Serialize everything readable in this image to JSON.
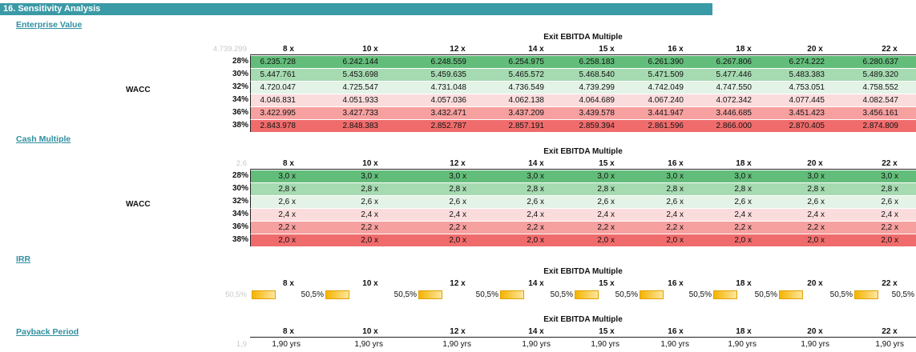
{
  "title": "16. Sensitivity Analysis",
  "colors": {
    "green_dark": "#63bd7a",
    "green_mid": "#a6dab1",
    "green_light": "#e3f3e6",
    "red_light": "#fbdcdc",
    "red_mid": "#f6a0a0",
    "red_dark": "#f06c6c"
  },
  "multiples": [
    "8 x",
    "10 x",
    "12 x",
    "14 x",
    "15 x",
    "16 x",
    "18 x",
    "20 x",
    "22 x"
  ],
  "caption": "Exit EBITDA Multiple",
  "wacc_label": "WACC",
  "wacc_rows": [
    "28%",
    "30%",
    "32%",
    "34%",
    "36%",
    "38%"
  ],
  "enterprise_value": {
    "label": "Enterprise Value",
    "corner": "4.739.299",
    "rows": [
      [
        "6.235.728",
        "6.242.144",
        "6.248.559",
        "6.254.975",
        "6.258.183",
        "6.261.390",
        "6.267.806",
        "6.274.222",
        "6.280.637"
      ],
      [
        "5.447.761",
        "5.453.698",
        "5.459.635",
        "5.465.572",
        "5.468.540",
        "5.471.509",
        "5.477.446",
        "5.483.383",
        "5.489.320"
      ],
      [
        "4.720.047",
        "4.725.547",
        "4.731.048",
        "4.736.549",
        "4.739.299",
        "4.742.049",
        "4.747.550",
        "4.753.051",
        "4.758.552"
      ],
      [
        "4.046.831",
        "4.051.933",
        "4.057.036",
        "4.062.138",
        "4.064.689",
        "4.067.240",
        "4.072.342",
        "4.077.445",
        "4.082.547"
      ],
      [
        "3.422.995",
        "3.427.733",
        "3.432.471",
        "3.437.209",
        "3.439.578",
        "3.441.947",
        "3.446.685",
        "3.451.423",
        "3.456.161"
      ],
      [
        "2.843.978",
        "2.848.383",
        "2.852.787",
        "2.857.191",
        "2.859.394",
        "2.861.596",
        "2.866.000",
        "2.870.405",
        "2.874.809"
      ]
    ]
  },
  "cash_multiple": {
    "label": "Cash Multiple",
    "corner": "2,6",
    "rows": [
      [
        "3,0 x",
        "3,0 x",
        "3,0 x",
        "3,0 x",
        "3,0 x",
        "3,0 x",
        "3,0 x",
        "3,0 x",
        "3,0 x"
      ],
      [
        "2,8 x",
        "2,8 x",
        "2,8 x",
        "2,8 x",
        "2,8 x",
        "2,8 x",
        "2,8 x",
        "2,8 x",
        "2,8 x"
      ],
      [
        "2,6 x",
        "2,6 x",
        "2,6 x",
        "2,6 x",
        "2,6 x",
        "2,6 x",
        "2,6 x",
        "2,6 x",
        "2,6 x"
      ],
      [
        "2,4 x",
        "2,4 x",
        "2,4 x",
        "2,4 x",
        "2,4 x",
        "2,4 x",
        "2,4 x",
        "2,4 x",
        "2,4 x"
      ],
      [
        "2,2 x",
        "2,2 x",
        "2,2 x",
        "2,2 x",
        "2,2 x",
        "2,2 x",
        "2,2 x",
        "2,2 x",
        "2,2 x"
      ],
      [
        "2,0 x",
        "2,0 x",
        "2,0 x",
        "2,0 x",
        "2,0 x",
        "2,0 x",
        "2,0 x",
        "2,0 x",
        "2,0 x"
      ]
    ]
  },
  "irr": {
    "label": "IRR",
    "corner": "50,5%",
    "values": [
      "50,5%",
      "50,5%",
      "50,5%",
      "50,5%",
      "50,5%",
      "50,5%",
      "50,5%",
      "50,5%",
      "50,5%"
    ],
    "fill_fraction": 0.5
  },
  "payback": {
    "label": "Payback Period",
    "corner": "1,9",
    "values": [
      "1,90 yrs",
      "1,90 yrs",
      "1,90 yrs",
      "1,90 yrs",
      "1,90 yrs",
      "1,90 yrs",
      "1,90 yrs",
      "1,90 yrs",
      "1,90 yrs"
    ]
  }
}
